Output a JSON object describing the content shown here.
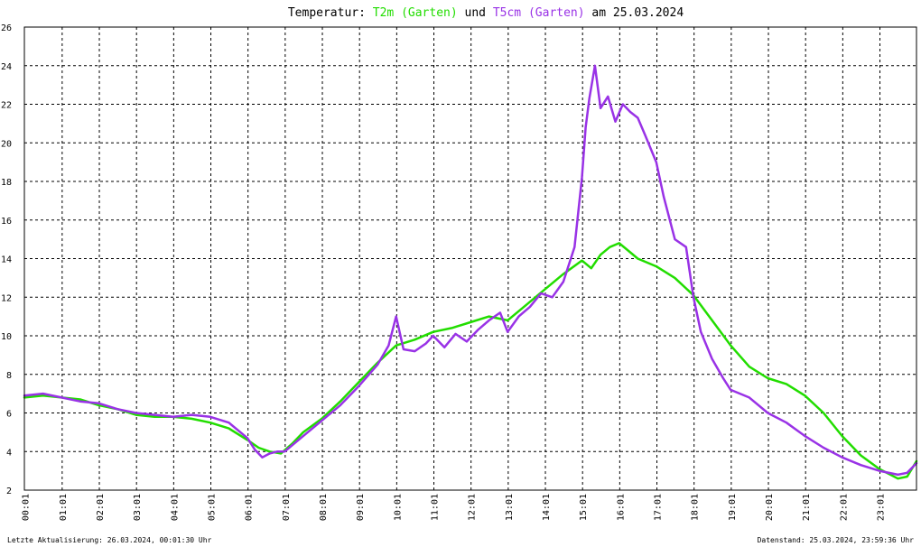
{
  "chart_data": {
    "type": "line",
    "title_parts": {
      "prefix": "Temperatur: ",
      "series1": "T2m (Garten)",
      "join": " und ",
      "series2": "T5cm (Garten)",
      "suffix": " am 25.03.2024"
    },
    "x_tick_labels": [
      "00:01",
      "01:01",
      "02:01",
      "03:01",
      "04:01",
      "05:01",
      "06:01",
      "07:01",
      "08:01",
      "09:01",
      "10:01",
      "11:01",
      "12:01",
      "13:01",
      "14:01",
      "15:01",
      "16:01",
      "17:01",
      "18:01",
      "19:01",
      "20:01",
      "21:01",
      "22:01",
      "23:01"
    ],
    "y_tick_labels": [
      "2",
      "4",
      "6",
      "8",
      "10",
      "12",
      "14",
      "16",
      "18",
      "20",
      "22",
      "24",
      "26"
    ],
    "xlim_hours": [
      0,
      24
    ],
    "ylim": [
      2,
      26
    ],
    "grid": true,
    "series": [
      {
        "name": "T2m (Garten)",
        "color": "#22dd00",
        "x": [
          0,
          0.5,
          1,
          1.5,
          2,
          2.5,
          3,
          3.5,
          4,
          4.5,
          5,
          5.5,
          6,
          6.3,
          6.6,
          6.9,
          7.2,
          7.5,
          8,
          8.5,
          9,
          9.5,
          10,
          10.5,
          11,
          11.5,
          12,
          12.5,
          13,
          13.5,
          14,
          14.5,
          15,
          15.25,
          15.5,
          15.75,
          16,
          16.25,
          16.5,
          17,
          17.5,
          18,
          18.5,
          19,
          19.5,
          20,
          20.5,
          21,
          21.5,
          22,
          22.5,
          23,
          23.5,
          23.75,
          24
        ],
        "values": [
          6.8,
          6.9,
          6.8,
          6.7,
          6.4,
          6.2,
          5.9,
          5.8,
          5.8,
          5.7,
          5.5,
          5.2,
          4.6,
          4.2,
          4.0,
          3.9,
          4.4,
          5.0,
          5.7,
          6.6,
          7.6,
          8.6,
          9.5,
          9.8,
          10.2,
          10.4,
          10.7,
          11.0,
          10.8,
          11.6,
          12.4,
          13.2,
          13.9,
          13.5,
          14.2,
          14.6,
          14.8,
          14.4,
          14.0,
          13.6,
          13.0,
          12.1,
          10.8,
          9.5,
          8.4,
          7.8,
          7.5,
          6.9,
          6.0,
          4.8,
          3.8,
          3.1,
          2.6,
          2.7,
          3.5
        ]
      },
      {
        "name": "T5cm (Garten)",
        "color": "#9932e6",
        "x": [
          0,
          0.5,
          1,
          1.5,
          2,
          2.5,
          3,
          3.5,
          4,
          4.5,
          5,
          5.5,
          6,
          6.2,
          6.4,
          6.6,
          6.8,
          7,
          7.5,
          8,
          8.5,
          9,
          9.5,
          9.8,
          10,
          10.2,
          10.5,
          10.8,
          11,
          11.3,
          11.6,
          11.9,
          12.2,
          12.5,
          12.8,
          13,
          13.3,
          13.6,
          13.9,
          14.2,
          14.5,
          14.8,
          15,
          15.1,
          15.2,
          15.35,
          15.5,
          15.7,
          15.9,
          16.1,
          16.3,
          16.5,
          16.7,
          17,
          17.2,
          17.5,
          17.8,
          18,
          18.2,
          18.5,
          18.8,
          19,
          19.5,
          20,
          20.5,
          21,
          21.5,
          22,
          22.5,
          23,
          23.5,
          23.75,
          24
        ],
        "values": [
          6.9,
          7.0,
          6.8,
          6.6,
          6.5,
          6.2,
          6.0,
          5.9,
          5.8,
          5.9,
          5.8,
          5.5,
          4.7,
          4.1,
          3.7,
          3.9,
          4.0,
          4.0,
          4.8,
          5.6,
          6.4,
          7.4,
          8.5,
          9.5,
          11.0,
          9.3,
          9.2,
          9.6,
          10.0,
          9.4,
          10.1,
          9.7,
          10.3,
          10.8,
          11.2,
          10.2,
          11.0,
          11.5,
          12.2,
          12.0,
          12.8,
          14.6,
          18.2,
          20.8,
          22.3,
          24.0,
          21.8,
          22.4,
          21.1,
          22.0,
          21.6,
          21.3,
          20.4,
          19.0,
          17.2,
          15.0,
          14.6,
          12.0,
          10.2,
          8.8,
          7.8,
          7.2,
          6.8,
          6.0,
          5.5,
          4.8,
          4.2,
          3.7,
          3.3,
          3.0,
          2.8,
          2.9,
          3.4
        ]
      }
    ]
  },
  "footer": {
    "last_update": "Letzte Aktualisierung: 26.03.2024, 00:01:30 Uhr",
    "data_state": "Datenstand: 25.03.2024, 23:59:36 Uhr"
  }
}
